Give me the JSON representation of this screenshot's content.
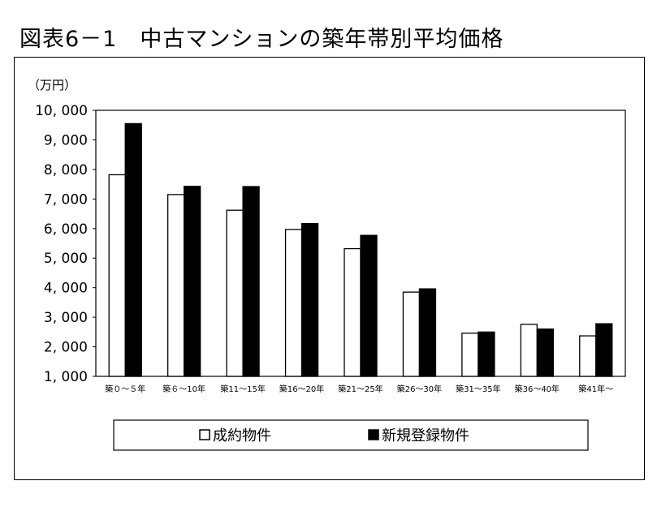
{
  "chart_data": {
    "type": "bar",
    "title": "図表6－1　中古マンションの築年帯別平均価格",
    "ylabel": "（万円）",
    "xlabel": "",
    "ylim": [
      1000,
      10000
    ],
    "yticks": [
      1000,
      2000,
      3000,
      4000,
      5000,
      6000,
      7000,
      8000,
      9000,
      10000
    ],
    "ytick_labels": [
      "1, 000",
      "2, 000",
      "3, 000",
      "4, 000",
      "5, 000",
      "6, 000",
      "7, 000",
      "8, 000",
      "9, 000",
      "10, 000"
    ],
    "categories": [
      "築０～５年",
      "築６～10年",
      "築11～15年",
      "築16～20年",
      "築21～25年",
      "築26～30年",
      "築31～35年",
      "築36～40年",
      "築41年～"
    ],
    "series": [
      {
        "name": "成約物件",
        "color": "#ffffff",
        "values": [
          7820,
          7150,
          6620,
          5970,
          5320,
          3850,
          2460,
          2760,
          2370
        ]
      },
      {
        "name": "新規登録物件",
        "color": "#000000",
        "values": [
          9550,
          7430,
          7420,
          6170,
          5770,
          3960,
          2500,
          2600,
          2780
        ]
      }
    ],
    "grid": false,
    "legend_position": "bottom"
  }
}
